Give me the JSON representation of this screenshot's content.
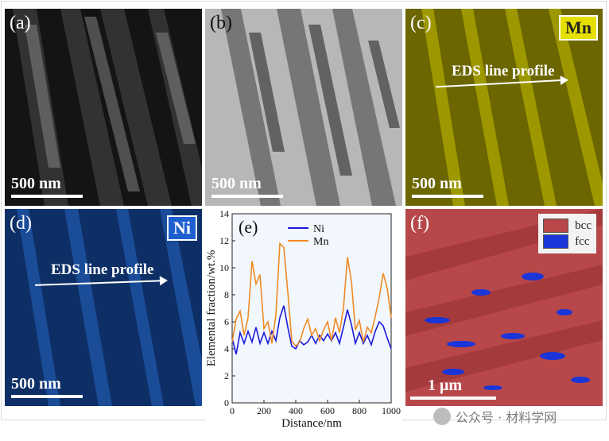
{
  "panels": {
    "a": {
      "label": "(a)",
      "scale": "500 nm"
    },
    "b": {
      "label": "(b)",
      "scale": "500 nm"
    },
    "c": {
      "label": "(c)",
      "scale": "500 nm",
      "element": "Mn",
      "eds": "EDS line profile",
      "color": "#e6e000"
    },
    "d": {
      "label": "(d)",
      "scale": "500 nm",
      "element": "Ni",
      "eds": "EDS line profile",
      "color": "#1e5fd0"
    },
    "e": {
      "label": "(e)"
    },
    "f": {
      "label": "(f)",
      "scale": "1 μm",
      "legend": [
        {
          "name": "bcc",
          "color": "#b8474a"
        },
        {
          "name": "fcc",
          "color": "#1a35d8"
        }
      ]
    }
  },
  "chart_data": {
    "type": "line",
    "xlabel": "Distance/nm",
    "ylabel": "Elemental fraction/wt.%",
    "xlim": [
      0,
      1000
    ],
    "ylim": [
      0,
      14
    ],
    "xticks": [
      0,
      200,
      400,
      600,
      800,
      1000
    ],
    "yticks": [
      0,
      2,
      4,
      6,
      8,
      10,
      12,
      14
    ],
    "series": [
      {
        "name": "Ni",
        "color": "#1b1bd9",
        "x": [
          0,
          25,
          50,
          75,
          100,
          125,
          150,
          175,
          200,
          225,
          250,
          275,
          300,
          325,
          350,
          375,
          400,
          425,
          450,
          475,
          500,
          525,
          550,
          575,
          600,
          625,
          650,
          675,
          700,
          725,
          750,
          775,
          800,
          825,
          850,
          875,
          900,
          925,
          950,
          975,
          1000
        ],
        "values": [
          4.8,
          3.6,
          5.2,
          4.4,
          5.3,
          4.5,
          5.6,
          4.4,
          5.2,
          4.4,
          5.3,
          4.6,
          6.3,
          7.2,
          5.6,
          4.2,
          4.0,
          4.6,
          4.3,
          4.5,
          5.0,
          4.4,
          5.0,
          4.6,
          5.1,
          4.6,
          5.2,
          4.4,
          5.6,
          6.9,
          5.8,
          4.4,
          5.2,
          4.4,
          5.0,
          4.3,
          5.3,
          6.0,
          5.7,
          4.8,
          4.0
        ]
      },
      {
        "name": "Mn",
        "color": "#f08a24",
        "x": [
          0,
          25,
          50,
          75,
          100,
          125,
          150,
          175,
          200,
          225,
          250,
          275,
          300,
          325,
          350,
          375,
          400,
          425,
          450,
          475,
          500,
          525,
          550,
          575,
          600,
          625,
          650,
          675,
          700,
          725,
          750,
          775,
          800,
          825,
          850,
          875,
          900,
          925,
          950,
          975,
          1000
        ],
        "values": [
          4.5,
          6.2,
          6.8,
          5.0,
          6.3,
          10.5,
          8.8,
          9.5,
          5.5,
          6.0,
          4.4,
          6.5,
          11.8,
          11.5,
          8.2,
          4.6,
          4.2,
          4.5,
          5.5,
          6.2,
          5.0,
          5.5,
          4.6,
          5.4,
          6.0,
          4.6,
          6.3,
          5.2,
          7.0,
          10.8,
          9.0,
          5.4,
          6.1,
          4.5,
          5.6,
          5.2,
          6.4,
          7.8,
          9.6,
          8.5,
          6.3
        ]
      }
    ]
  },
  "watermark": {
    "text": "公众号 · 材料学网"
  }
}
